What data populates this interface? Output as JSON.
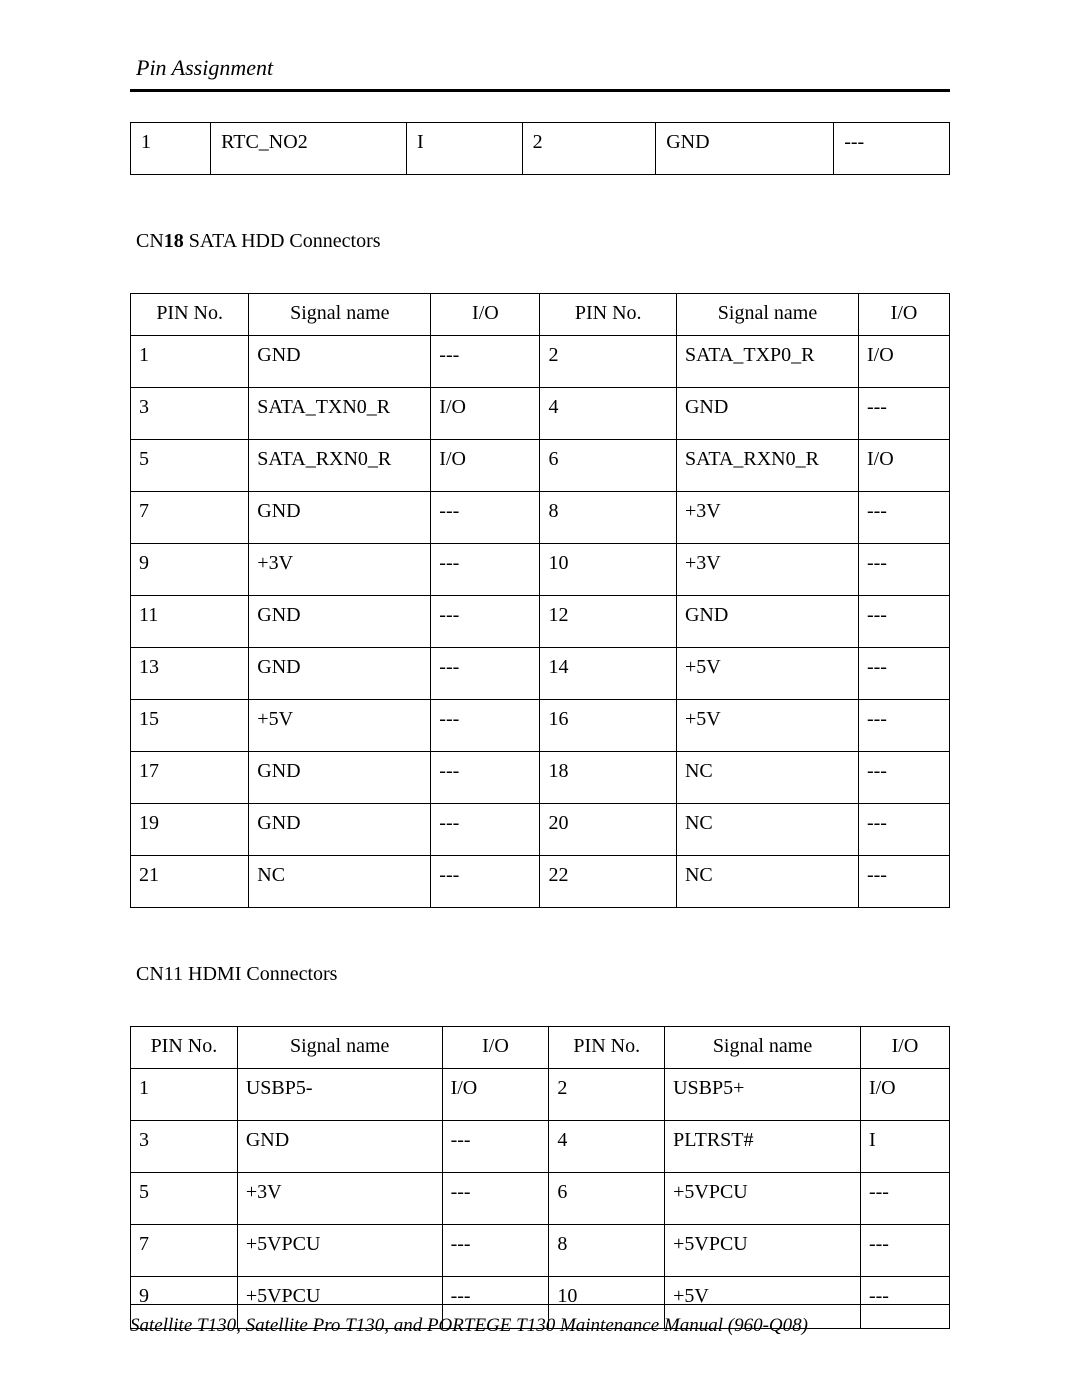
{
  "header": {
    "title": "Pin Assignment"
  },
  "top_table": {
    "col_widths_pct": [
      9,
      22,
      13,
      15,
      20,
      13
    ],
    "row": [
      "1",
      "RTC_NO2",
      "I",
      "2",
      "GND",
      "---"
    ]
  },
  "section1": {
    "heading_prefix": "CN",
    "heading_num": "18",
    "heading_rest": " SATA HDD Connectors",
    "columns": [
      "PIN No.",
      "Signal name",
      "I/O",
      "PIN No.",
      "Signal name",
      "I/O"
    ],
    "col_widths_pct": [
      13,
      20,
      12,
      15,
      20,
      10
    ],
    "rows": [
      [
        "1",
        "GND",
        "---",
        "2",
        "SATA_TXP0_R",
        "I/O"
      ],
      [
        "3",
        "SATA_TXN0_R",
        "I/O",
        "4",
        "GND",
        "---"
      ],
      [
        "5",
        "SATA_RXN0_R",
        "I/O",
        "6",
        "SATA_RXN0_R",
        "I/O"
      ],
      [
        "7",
        "GND",
        "---",
        "8",
        "+3V",
        "---"
      ],
      [
        "9",
        "+3V",
        "---",
        "10",
        "+3V",
        "---"
      ],
      [
        "11",
        "GND",
        "---",
        "12",
        "GND",
        "---"
      ],
      [
        "13",
        "GND",
        "---",
        "14",
        "+5V",
        "---"
      ],
      [
        "15",
        "+5V",
        "---",
        "16",
        "+5V",
        "---"
      ],
      [
        "17",
        "GND",
        "---",
        "18",
        "NC",
        "---"
      ],
      [
        "19",
        "GND",
        "---",
        "20",
        "NC",
        "---"
      ],
      [
        "21",
        "NC",
        "---",
        "22",
        "NC",
        "---"
      ]
    ]
  },
  "section2": {
    "heading": "CN11 HDMI Connectors",
    "columns": [
      "PIN No.",
      "Signal name",
      "I/O",
      "PIN No.",
      "Signal name",
      "I/O"
    ],
    "col_widths_pct": [
      12,
      23,
      12,
      13,
      22,
      10
    ],
    "rows": [
      [
        "1",
        "USBP5-",
        "I/O",
        "2",
        "USBP5+",
        "I/O"
      ],
      [
        "3",
        "GND",
        "---",
        "4",
        "PLTRST#",
        "I"
      ],
      [
        "5",
        "+3V",
        "---",
        "6",
        "+5VPCU",
        "---"
      ],
      [
        "7",
        "+5VPCU",
        "---",
        "8",
        "+5VPCU",
        "---"
      ],
      [
        "9",
        "+5VPCU",
        "---",
        "10",
        "+5V",
        "---"
      ]
    ]
  },
  "footer": {
    "text": "Satellite T130,  Satellite Pro T130, and PORTEGE T130 Maintenance Manual (960-Q08)"
  },
  "style": {
    "background_color": "#ffffff",
    "text_color": "#000000",
    "border_color": "#000000",
    "font_family": "Times New Roman",
    "body_fontsize": 20,
    "header_fontsize": 22,
    "footer_fontsize": 19
  }
}
